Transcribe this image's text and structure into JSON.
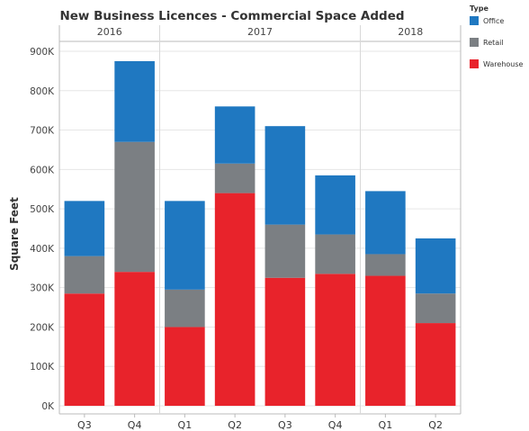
{
  "chart_data": {
    "type": "bar",
    "stacked": true,
    "title": "New Business Licences - Commercial Space Added",
    "ylabel": "Square Feet",
    "xlabel": "",
    "ylim": [
      0,
      950000
    ],
    "yticks": [
      0,
      100000,
      200000,
      300000,
      400000,
      500000,
      600000,
      700000,
      800000,
      900000
    ],
    "ytick_labels": [
      "0K",
      "100K",
      "200K",
      "300K",
      "400K",
      "500K",
      "600K",
      "700K",
      "800K",
      "900K"
    ],
    "grid": true,
    "legend": {
      "title": "Type",
      "position": "top-right",
      "entries": [
        "Office",
        "Retail",
        "Warehouse"
      ]
    },
    "year_groups": [
      {
        "label": "2016",
        "categories": [
          "Q3",
          "Q4"
        ]
      },
      {
        "label": "2017",
        "categories": [
          "Q1",
          "Q2",
          "Q3",
          "Q4"
        ]
      },
      {
        "label": "2018",
        "categories": [
          "Q1",
          "Q2"
        ]
      }
    ],
    "categories": [
      "Q3",
      "Q4",
      "Q1",
      "Q2",
      "Q3",
      "Q4",
      "Q1",
      "Q2"
    ],
    "series": [
      {
        "name": "Warehouse",
        "color": "#e8232b",
        "values": [
          285000,
          340000,
          200000,
          540000,
          325000,
          335000,
          330000,
          210000
        ]
      },
      {
        "name": "Retail",
        "color": "#7b7f83",
        "values": [
          95000,
          330000,
          95000,
          75000,
          135000,
          100000,
          55000,
          75000
        ]
      },
      {
        "name": "Office",
        "color": "#1f78c1",
        "values": [
          140000,
          205000,
          225000,
          145000,
          250000,
          150000,
          160000,
          140000
        ]
      }
    ]
  }
}
